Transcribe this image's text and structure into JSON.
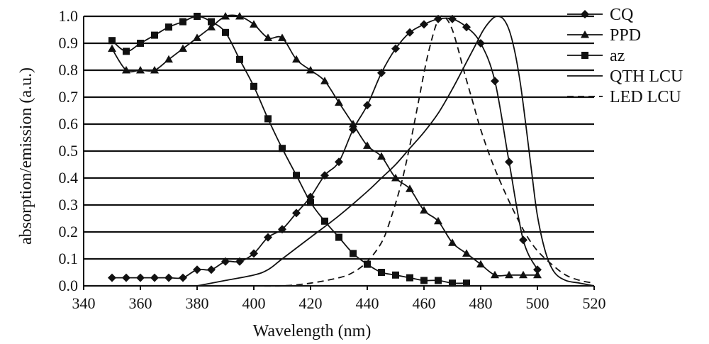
{
  "chart_data": {
    "type": "line",
    "xlabel": "Wavelength (nm)",
    "ylabel": "absorption/emission (a.u.)",
    "xlim": [
      340,
      520
    ],
    "ylim": [
      0.0,
      1.0
    ],
    "x_ticks": [
      340,
      360,
      380,
      400,
      420,
      440,
      460,
      480,
      500,
      520
    ],
    "x_tick_labels": [
      "340",
      "360",
      "380",
      "400",
      "420",
      "440",
      "460",
      "480",
      "500",
      "520"
    ],
    "y_ticks": [
      0.0,
      0.1,
      0.2,
      0.3,
      0.4,
      0.5,
      0.6,
      0.7,
      0.8,
      0.9,
      1.0
    ],
    "y_tick_labels": [
      "0.0",
      "0.1",
      "0.2",
      "0.3",
      "0.4",
      "0.5",
      "0.6",
      "0.7",
      "0.8",
      "0.9",
      "1.0"
    ],
    "grid": "horizontal",
    "legend_position": "top-right",
    "series": [
      {
        "name": "CQ",
        "marker": "diamond",
        "line": "solid",
        "x": [
          350,
          355,
          360,
          365,
          370,
          375,
          380,
          385,
          390,
          395,
          400,
          405,
          410,
          415,
          420,
          425,
          430,
          435,
          440,
          445,
          450,
          455,
          460,
          465,
          470,
          475,
          480,
          485,
          490,
          495,
          500
        ],
        "y": [
          0.03,
          0.03,
          0.03,
          0.03,
          0.03,
          0.03,
          0.06,
          0.06,
          0.09,
          0.09,
          0.12,
          0.18,
          0.21,
          0.27,
          0.33,
          0.41,
          0.46,
          0.58,
          0.67,
          0.79,
          0.88,
          0.94,
          0.97,
          0.99,
          0.99,
          0.96,
          0.9,
          0.76,
          0.46,
          0.17,
          0.06
        ]
      },
      {
        "name": "PPD",
        "marker": "triangle",
        "line": "solid",
        "x": [
          350,
          355,
          360,
          365,
          370,
          375,
          380,
          385,
          390,
          395,
          400,
          405,
          410,
          415,
          420,
          425,
          430,
          435,
          440,
          445,
          450,
          455,
          460,
          465,
          470,
          475,
          480,
          485,
          490,
          495,
          500
        ],
        "y": [
          0.88,
          0.8,
          0.8,
          0.8,
          0.84,
          0.88,
          0.92,
          0.96,
          1.0,
          1.0,
          0.97,
          0.92,
          0.92,
          0.84,
          0.8,
          0.76,
          0.68,
          0.6,
          0.52,
          0.48,
          0.4,
          0.36,
          0.28,
          0.24,
          0.16,
          0.12,
          0.08,
          0.04,
          0.04,
          0.04,
          0.04
        ]
      },
      {
        "name": "az",
        "marker": "square",
        "line": "solid",
        "x": [
          350,
          355,
          360,
          365,
          370,
          375,
          380,
          385,
          390,
          395,
          400,
          405,
          410,
          415,
          420,
          425,
          430,
          435,
          440,
          445,
          450,
          455,
          460,
          465,
          470,
          475
        ],
        "y": [
          0.91,
          0.87,
          0.9,
          0.93,
          0.96,
          0.98,
          1.0,
          0.98,
          0.94,
          0.84,
          0.74,
          0.62,
          0.51,
          0.41,
          0.31,
          0.24,
          0.18,
          0.12,
          0.08,
          0.05,
          0.04,
          0.03,
          0.02,
          0.02,
          0.01,
          0.01
        ]
      },
      {
        "name": "QTH LCU",
        "marker": "none",
        "line": "solid",
        "x": [
          380,
          390,
          400,
          405,
          410,
          420,
          430,
          440,
          445,
          450,
          455,
          460,
          465,
          470,
          475,
          478,
          481,
          484,
          486,
          488,
          490,
          492,
          494,
          496,
          498,
          500,
          503,
          506,
          510,
          515,
          520
        ],
        "y": [
          0.0,
          0.02,
          0.04,
          0.06,
          0.1,
          0.18,
          0.26,
          0.35,
          0.4,
          0.45,
          0.51,
          0.57,
          0.64,
          0.73,
          0.83,
          0.89,
          0.95,
          0.99,
          1.0,
          0.99,
          0.95,
          0.87,
          0.75,
          0.59,
          0.42,
          0.26,
          0.12,
          0.05,
          0.02,
          0.01,
          0.0
        ]
      },
      {
        "name": "LED LCU",
        "marker": "none",
        "line": "dashed",
        "x": [
          400,
          410,
          420,
          430,
          435,
          440,
          445,
          448,
          452,
          455,
          458,
          461,
          464,
          466,
          468,
          470,
          472,
          474,
          477,
          480,
          484,
          488,
          492,
          496,
          500,
          505,
          510,
          515,
          520
        ],
        "y": [
          0.0,
          0.0,
          0.01,
          0.03,
          0.05,
          0.09,
          0.16,
          0.24,
          0.38,
          0.52,
          0.68,
          0.84,
          0.96,
          1.0,
          0.99,
          0.95,
          0.88,
          0.8,
          0.69,
          0.58,
          0.46,
          0.36,
          0.27,
          0.19,
          0.13,
          0.08,
          0.04,
          0.02,
          0.01
        ]
      }
    ]
  }
}
